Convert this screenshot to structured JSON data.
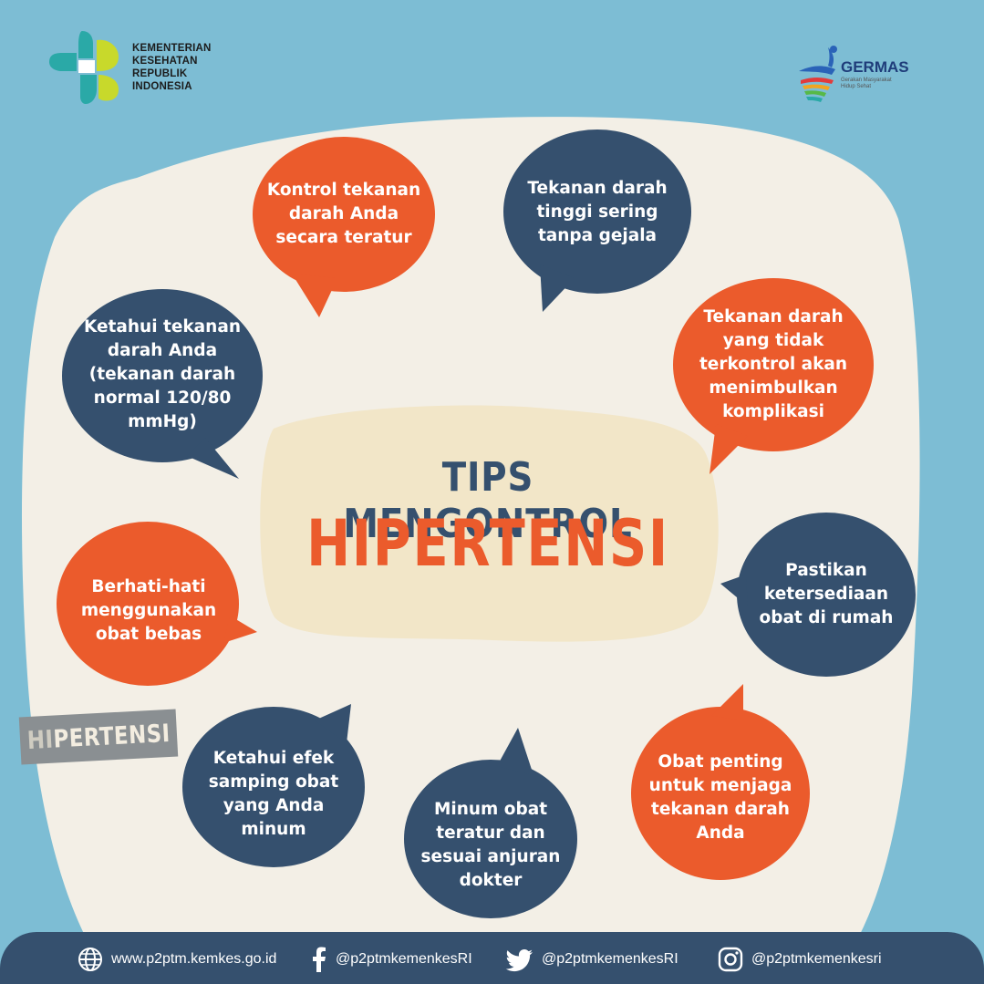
{
  "header": {
    "kemenkes_lines": [
      "KEMENTERIAN",
      "KESEHATAN",
      "REPUBLIK",
      "INDONESIA"
    ],
    "germas_title": "GERMAS",
    "germas_sub": "Gerakan Masyarakat Hidup Sehat"
  },
  "title": {
    "line1": "TIPS MENGONTROL",
    "line2": "HIPERTENSI"
  },
  "bubbles": [
    {
      "text": "Kontrol tekanan darah Anda secara teratur",
      "color": "#eb5b2c"
    },
    {
      "text": "Tekanan darah tinggi sering tanpa gejala",
      "color": "#35506e"
    },
    {
      "text": "Tekanan darah yang tidak terkontrol akan menimbulkan komplikasi",
      "color": "#eb5b2c"
    },
    {
      "text": "Pastikan ketersediaan obat di rumah",
      "color": "#35506e"
    },
    {
      "text": "Obat penting untuk menjaga tekanan darah Anda",
      "color": "#eb5b2c"
    },
    {
      "text": "Minum obat teratur dan sesuai anjuran dokter",
      "color": "#35506e"
    },
    {
      "text": "Ketahui efek samping obat yang Anda minum",
      "color": "#35506e"
    },
    {
      "text": "Berhati-hati menggunakan obat bebas",
      "color": "#eb5b2c"
    },
    {
      "text": "Ketahui tekanan darah Anda (tekanan darah normal 120/80 mmHg)",
      "color": "#35506e"
    }
  ],
  "stamp": {
    "part1": "HI",
    "part2": "PERTENSI"
  },
  "footer": {
    "website": "www.p2ptm.kemkes.go.id",
    "facebook": "@p2ptmkemenkesRI",
    "twitter": "@p2ptmkemenkesRI",
    "instagram": "@p2ptmkemenkesri"
  },
  "colors": {
    "background": "#7dbdd4",
    "paper": "#f3efe6",
    "navy": "#35506e",
    "orange": "#eb5b2c",
    "center_blob": "#f2e6c8"
  }
}
